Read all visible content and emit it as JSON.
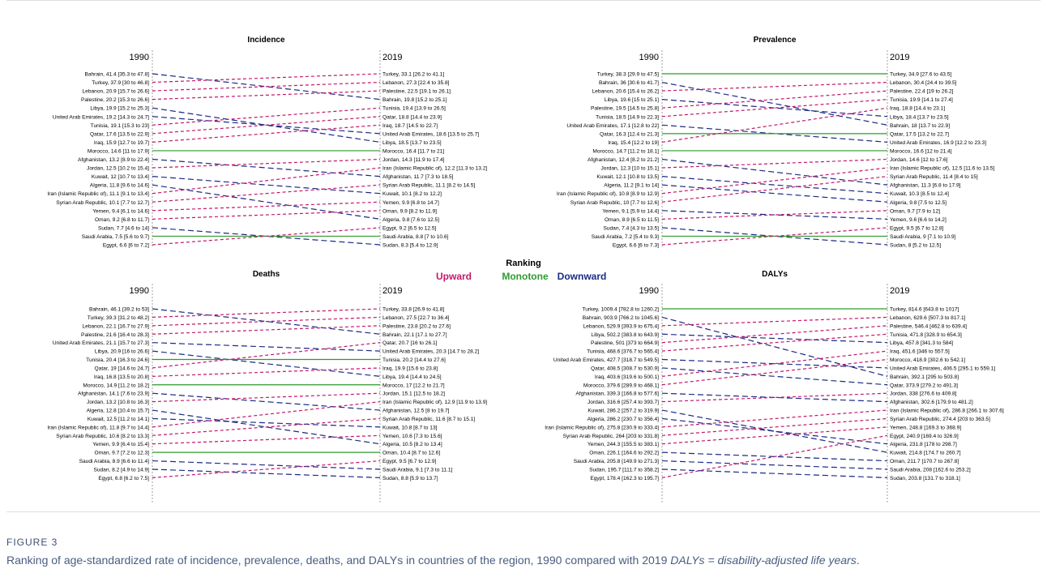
{
  "figure": {
    "label": "FIGURE 3",
    "caption_main": "Ranking of age-standardized rate of incidence, prevalence, deaths, and DALYs in countries of the region, 1990 compared with 2019",
    "caption_abbrev": "DALYs = disability-adjusted life years",
    "caption_end": "."
  },
  "legend": {
    "title": "Ranking",
    "items": [
      {
        "label": "Upward",
        "color": "#c2186b"
      },
      {
        "label": "Monotone",
        "color": "#2e9a2e"
      },
      {
        "label": "Downward",
        "color": "#1c2a85"
      }
    ]
  },
  "colors": {
    "up": "#c2186b",
    "same": "#2e9a2e",
    "down": "#1c2a85",
    "axis": "#888888"
  },
  "chart_data": [
    {
      "type": "slope",
      "title": "Incidence",
      "left_year": "1990",
      "right_year": "2019",
      "left": [
        {
          "country": "Bahrain",
          "label": "Bahrain, 41.4 [35.3 to 47.8]"
        },
        {
          "country": "Turkey",
          "label": "Turkey, 37.9 [30 to 46.8]"
        },
        {
          "country": "Lebanon",
          "label": "Lebanon, 20.9 [15.7 to 26.6]"
        },
        {
          "country": "Palestine",
          "label": "Palestine, 20.2 [15.3 to 26.6]"
        },
        {
          "country": "Libya",
          "label": "Libya, 19.9 [15.2 to 25.3]"
        },
        {
          "country": "United Arab Emirates",
          "label": "United Arab Emirates, 19.2 [14.3 to 24.7]"
        },
        {
          "country": "Tunisia",
          "label": "Tunisia, 19.1 [15.3 to 23]"
        },
        {
          "country": "Qatar",
          "label": "Qatar, 17.6 [13.5 to 22.9]"
        },
        {
          "country": "Iraq",
          "label": "Iraq, 15.9 [12.7 to 19.7]"
        },
        {
          "country": "Morocco",
          "label": "Morocco, 14.6 [11 to 17.9]"
        },
        {
          "country": "Afghanistan",
          "label": "Afghanistan, 13.2 [8.9 to 22.4]"
        },
        {
          "country": "Jordan",
          "label": "Jordan, 12.5 [10.2 to 15.4]"
        },
        {
          "country": "Kuwait",
          "label": "Kuwait, 12 [10.7 to 13.4]"
        },
        {
          "country": "Algeria",
          "label": "Algeria, 11.8 [9.6 to 14.6]"
        },
        {
          "country": "Iran (Islamic Republic of)",
          "label": "Iran (Islamic Republic of), 11.1 [9.1 to 13.4]"
        },
        {
          "country": "Syrian Arab Republic",
          "label": "Syrian Arab Republic, 10.1 [7.7 to 12.7]"
        },
        {
          "country": "Yemen",
          "label": "Yemen, 9.4 [6.1 to 14.6]"
        },
        {
          "country": "Oman",
          "label": "Oman, 9.2 [6.8 to 11.7]"
        },
        {
          "country": "Sudan",
          "label": "Sudan, 7.7 [4.6 to 14]"
        },
        {
          "country": "Saudi Arabia",
          "label": "Saudi Arabia, 7.5 [5.6 to 9.7]"
        },
        {
          "country": "Egypt",
          "label": "Egypt, 6.6 [6 to 7.2]"
        }
      ],
      "right": [
        {
          "country": "Turkey",
          "label": "Turkey, 33.1 [26.2 to 41.1]"
        },
        {
          "country": "Lebanon",
          "label": "Lebanon, 27.3 [22.4 to 35.8]"
        },
        {
          "country": "Palestine",
          "label": "Palestine, 22.5 [19.1 to 26.1]"
        },
        {
          "country": "Bahrain",
          "label": "Bahrain, 19.8 [15.2 to 25.1]"
        },
        {
          "country": "Tunisia",
          "label": "Tunisia, 19.4 [13.9 to 26.5]"
        },
        {
          "country": "Qatar",
          "label": "Qatar, 18.8 [14.4 to 23.9]"
        },
        {
          "country": "Iraq",
          "label": "Iraq, 18.7 [14.5 to 22.7]"
        },
        {
          "country": "United Arab Emirates",
          "label": "United Arab Emirates, 18.6 [13.5 to 25.7]"
        },
        {
          "country": "Libya",
          "label": "Libya, 18.5 [13.7 to 23.5]"
        },
        {
          "country": "Morocco",
          "label": "Morocco, 16.4 [11.7 to 21]"
        },
        {
          "country": "Jordan",
          "label": "Jordan, 14.3 [11.9 to 17.4]"
        },
        {
          "country": "Iran (Islamic Republic of)",
          "label": "Iran (Islamic Republic of), 12.2 [11.3 to 13.2]"
        },
        {
          "country": "Afghanistan",
          "label": "Afghanistan, 11.7 [7.3 to 18.5]"
        },
        {
          "country": "Syrian Arab Republic",
          "label": "Syrian Arab Republic, 11.1 [8.2 to 14.5]"
        },
        {
          "country": "Kuwait",
          "label": "Kuwait, 10.1 [8.2 to 12.2]"
        },
        {
          "country": "Yemen",
          "label": "Yemen, 9.9 [6.8 to 14.7]"
        },
        {
          "country": "Oman",
          "label": "Oman, 9.9 [8.2 to 11.9]"
        },
        {
          "country": "Algeria",
          "label": "Algeria, 9.8 [7.6 to 12.5]"
        },
        {
          "country": "Egypt",
          "label": "Egypt, 9.2 [6.5 to 12.5]"
        },
        {
          "country": "Saudi Arabia",
          "label": "Saudi Arabia, 8.8 [7 to 10.6]"
        },
        {
          "country": "Sudan",
          "label": "Sudan, 8.3 [5.4 to 12.9]"
        }
      ]
    },
    {
      "type": "slope",
      "title": "Prevalence",
      "left_year": "1990",
      "right_year": "2019",
      "left": [
        {
          "country": "Turkey",
          "label": "Turkey, 38.3 [29.9 to 47.5]"
        },
        {
          "country": "Bahrain",
          "label": "Bahrain, 36 [30.6 to 41.7]"
        },
        {
          "country": "Lebanon",
          "label": "Lebanon, 20.6 [15.4 to 26.2]"
        },
        {
          "country": "Libya",
          "label": "Libya, 19.6 [15 to 25.1]"
        },
        {
          "country": "Palestine",
          "label": "Palestine, 19.5 [14.5 to 25.8]"
        },
        {
          "country": "Tunisia",
          "label": "Tunisia, 18.5 [14.9 to 22.3]"
        },
        {
          "country": "United Arab Emirates",
          "label": "United Arab Emirates, 17.1 [12.8 to 22]"
        },
        {
          "country": "Qatar",
          "label": "Qatar, 16.3 [12.4 to 21.3]"
        },
        {
          "country": "Iraq",
          "label": "Iraq, 15.4 [12.2 to 19]"
        },
        {
          "country": "Morocco",
          "label": "Morocco, 14.7 [11.2 to 18.1]"
        },
        {
          "country": "Afghanistan",
          "label": "Afghanistan, 12.4 [8.2 to 21.2]"
        },
        {
          "country": "Jordan",
          "label": "Jordan, 12.3 [10 to 15.1]"
        },
        {
          "country": "Kuwait",
          "label": "Kuwait, 12.1 [10.8 to 13.5]"
        },
        {
          "country": "Algeria",
          "label": "Algeria, 11.2 [9.1 to 14]"
        },
        {
          "country": "Iran (Islamic Republic of)",
          "label": "Iran (Islamic Republic of), 10.8 [8.9 to 12.9]"
        },
        {
          "country": "Syrian Arab Republic",
          "label": "Syrian Arab Republic, 10 [7.7 to 12.6]"
        },
        {
          "country": "Yemen",
          "label": "Yemen, 9.1 [5.9 to 14.4]"
        },
        {
          "country": "Oman",
          "label": "Oman, 8.9 [6.5 to 11.5]"
        },
        {
          "country": "Sudan",
          "label": "Sudan, 7.4 [4.3 to 13.5]"
        },
        {
          "country": "Saudi Arabia",
          "label": "Saudi Arabia, 7.2 [5.4 to 9.3]"
        },
        {
          "country": "Egypt",
          "label": "Egypt, 6.6 [6 to 7.3]"
        }
      ],
      "right": [
        {
          "country": "Turkey",
          "label": "Turkey, 34.9 [27.6 to 43.5]"
        },
        {
          "country": "Lebanon",
          "label": "Lebanon, 30.4 [24.4 to 39.5]"
        },
        {
          "country": "Palestine",
          "label": "Palestine, 22.4 [19 to 26.2]"
        },
        {
          "country": "Tunisia",
          "label": "Tunisia, 19.9 [14.1 to 27.4]"
        },
        {
          "country": "Iraq",
          "label": "Iraq, 18.8 [14.4 to 23.1]"
        },
        {
          "country": "Libya",
          "label": "Libya, 18.4 [13.7 to 23.5]"
        },
        {
          "country": "Bahrain",
          "label": "Bahrain, 18 [13.7 to 22.9]"
        },
        {
          "country": "Qatar",
          "label": "Qatar, 17.5 [13.2 to 22.7]"
        },
        {
          "country": "United Arab Emirates",
          "label": "United Arab Emirates, 16.9 [12.2 to 23.3]"
        },
        {
          "country": "Morocco",
          "label": "Morocco, 16.6 [12 to 21.4]"
        },
        {
          "country": "Jordan",
          "label": "Jordan, 14.6 [12 to 17.6]"
        },
        {
          "country": "Iran (Islamic Republic of)",
          "label": "Iran (Islamic Republic of), 12.5 [11.6 to 13.5]"
        },
        {
          "country": "Syrian Arab Republic",
          "label": "Syrian Arab Republic, 11.4 [8.4 to 15]"
        },
        {
          "country": "Afghanistan",
          "label": "Afghanistan, 11.3 [6.8 to 17.9]"
        },
        {
          "country": "Kuwait",
          "label": "Kuwait, 10.3 [8.5 to 12.4]"
        },
        {
          "country": "Algeria",
          "label": "Algeria, 9.8 [7.5 to 12.5]"
        },
        {
          "country": "Oman",
          "label": "Oman, 9.7 [7.9 to 12]"
        },
        {
          "country": "Yemen",
          "label": "Yemen, 9.6 [6.6 to 14.2]"
        },
        {
          "country": "Egypt",
          "label": "Egypt, 9.5 [6.7 to 12.8]"
        },
        {
          "country": "Saudi Arabia",
          "label": "Saudi Arabia, 9 [7.1 to 10.9]"
        },
        {
          "country": "Sudan",
          "label": "Sudan, 8 [5.2 to 12.5]"
        }
      ]
    },
    {
      "type": "slope",
      "title": "Deaths",
      "left_year": "1990",
      "right_year": "2019",
      "left": [
        {
          "country": "Bahrain",
          "label": "Bahrain, 46.1 [39.2 to 53]"
        },
        {
          "country": "Turkey",
          "label": "Turkey, 39.3 [31.2 to 48.2]"
        },
        {
          "country": "Lebanon",
          "label": "Lebanon, 22.1 [16.7 to 27.9]"
        },
        {
          "country": "Palestine",
          "label": "Palestine, 21.6 [16.4 to 28.3]"
        },
        {
          "country": "United Arab Emirates",
          "label": "United Arab Emirates, 21.1 [15.7 to 27.3]"
        },
        {
          "country": "Libya",
          "label": "Libya, 20.9 [16 to 26.6]"
        },
        {
          "country": "Tunisia",
          "label": "Tunisia, 20.4 [16.3 to 24.6]"
        },
        {
          "country": "Qatar",
          "label": "Qatar, 19 [14.6 to 24.7]"
        },
        {
          "country": "Iraq",
          "label": "Iraq, 16.8 [13.5 to 20.8]"
        },
        {
          "country": "Morocco",
          "label": "Morocco, 14.9 [11.2 to 18.2]"
        },
        {
          "country": "Afghanistan",
          "label": "Afghanistan, 14.1 [7.6 to 23.9]"
        },
        {
          "country": "Jordan",
          "label": "Jordan, 13.2 [10.8 to 16.3]"
        },
        {
          "country": "Algeria",
          "label": "Algeria, 12.8 [10.4 to 15.7]"
        },
        {
          "country": "Kuwait",
          "label": "Kuwait, 12.5 [11.2 to 14.1]"
        },
        {
          "country": "Iran (Islamic Republic of)",
          "label": "Iran (Islamic Republic of), 11.8 [9.7 to 14.4]"
        },
        {
          "country": "Syrian Arab Republic",
          "label": "Syrian Arab Republic, 10.6 [8.2 to 13.3]"
        },
        {
          "country": "Yemen",
          "label": "Yemen, 9.9 [6.4 to 15.4]"
        },
        {
          "country": "Oman",
          "label": "Oman, 9.7 [7.2 to 12.3]"
        },
        {
          "country": "Saudi Arabia",
          "label": "Saudi Arabia, 8.9 [6.6 to 11.4]"
        },
        {
          "country": "Sudan",
          "label": "Sudan, 8.2 [4.9 to 14.9]"
        },
        {
          "country": "Egypt",
          "label": "Egypt, 6.8 [6.2 to 7.5]"
        }
      ],
      "right": [
        {
          "country": "Turkey",
          "label": "Turkey, 33.8 [26.9 to 41.8]"
        },
        {
          "country": "Lebanon",
          "label": "Lebanon, 27.5 [22.7 to 36.4]"
        },
        {
          "country": "Palestine",
          "label": "Palestine, 23.8 [20.2 to 27.6]"
        },
        {
          "country": "Bahrain",
          "label": "Bahrain, 22.1 [17.1 to 27.7]"
        },
        {
          "country": "Qatar",
          "label": "Qatar, 20.7 [16 to 26.1]"
        },
        {
          "country": "United Arab Emirates",
          "label": "United Arab Emirates, 20.3 [14.7 to 28.2]"
        },
        {
          "country": "Tunisia",
          "label": "Tunisia, 20.2 [14.4 to 27.6]"
        },
        {
          "country": "Iraq",
          "label": "Iraq, 19.9 [15.6 to 23.8]"
        },
        {
          "country": "Libya",
          "label": "Libya, 19.4 [14.4 to 24.5]"
        },
        {
          "country": "Morocco",
          "label": "Morocco, 17 [12.2 to 21.7]"
        },
        {
          "country": "Jordan",
          "label": "Jordan, 15.1 [12.5 to 18.2]"
        },
        {
          "country": "Iran (Islamic Republic of)",
          "label": "Iran (Islamic Republic of), 12.9 [11.9 to 13.9]"
        },
        {
          "country": "Afghanistan",
          "label": "Afghanistan, 12.5 [8 to 19.7]"
        },
        {
          "country": "Syrian Arab Republic",
          "label": "Syrian Arab Republic, 11.6 [8.7 to 15.1]"
        },
        {
          "country": "Kuwait",
          "label": "Kuwait, 10.8 [8.7 to 13]"
        },
        {
          "country": "Yemen",
          "label": "Yemen, 10.6 [7.3 to 15.6]"
        },
        {
          "country": "Algeria",
          "label": "Algeria, 10.5 [8.2 to 13.4]"
        },
        {
          "country": "Oman",
          "label": "Oman, 10.4 [8.7 to 12.6]"
        },
        {
          "country": "Egypt",
          "label": "Egypt, 9.5 [6.7 to 12.9]"
        },
        {
          "country": "Saudi Arabia",
          "label": "Saudi Arabia, 9.1 [7.3 to 11.1]"
        },
        {
          "country": "Sudan",
          "label": "Sudan, 8.8 [5.9 to 13.7]"
        }
      ]
    },
    {
      "type": "slope",
      "title": "DALYs",
      "left_year": "1990",
      "right_year": "2019",
      "left": [
        {
          "country": "Turkey",
          "label": "Turkey, 1009.4 [782.8 to 1260.2]"
        },
        {
          "country": "Bahrain",
          "label": "Bahrain, 903.9 [766.2 to 1045.6]"
        },
        {
          "country": "Lebanon",
          "label": "Lebanon, 529.9 [393.9 to 675.4]"
        },
        {
          "country": "Libya",
          "label": "Libya, 502.2 [383.8 to 643.9]"
        },
        {
          "country": "Palestine",
          "label": "Palestine, 501 [373 to 664.9]"
        },
        {
          "country": "Tunisia",
          "label": "Tunisia, 468.6 [376.7 to 565.4]"
        },
        {
          "country": "United Arab Emirates",
          "label": "United Arab Emirates, 427.7 [318.7 to 549.5]"
        },
        {
          "country": "Qatar",
          "label": "Qatar, 408.5 [308.7 to 530.9]"
        },
        {
          "country": "Iraq",
          "label": "Iraq, 403.6 [319.6 to 500.1]"
        },
        {
          "country": "Morocco",
          "label": "Morocco, 379.6 [289.9 to 468.1]"
        },
        {
          "country": "Afghanistan",
          "label": "Afghanistan, 339.3 [166.8 to 577.6]"
        },
        {
          "country": "Jordan",
          "label": "Jordan, 316.6 [257.4 to 393.7]"
        },
        {
          "country": "Kuwait",
          "label": "Kuwait, 286.2 [257.2 to 319.9]"
        },
        {
          "country": "Algeria",
          "label": "Algeria, 286.2 [230.7 to 356.4]"
        },
        {
          "country": "Iran (Islamic Republic of)",
          "label": "Iran (Islamic Republic of), 275.8 [230.9 to 333.4]"
        },
        {
          "country": "Syrian Arab Republic",
          "label": "Syrian Arab Republic, 264 [203 to 331.8]"
        },
        {
          "country": "Yemen",
          "label": "Yemen, 244.3 [155.5 to 383.1]"
        },
        {
          "country": "Oman",
          "label": "Oman, 226.1 [164.6 to 292.2]"
        },
        {
          "country": "Saudi Arabia",
          "label": "Saudi Arabia, 205.8 [149.9 to 271.3]"
        },
        {
          "country": "Sudan",
          "label": "Sudan, 195.7 [111.7 to 358.2]"
        },
        {
          "country": "Egypt",
          "label": "Egypt, 178.4 [162.3 to 195.7]"
        }
      ],
      "right": [
        {
          "country": "Turkey",
          "label": "Turkey, 814.6 [643.8 to 1017]"
        },
        {
          "country": "Lebanon",
          "label": "Lebanon, 629.6 [507.3 to 817.1]"
        },
        {
          "country": "Palestine",
          "label": "Palestine, 546.4 [462.8 to 639.4]"
        },
        {
          "country": "Tunisia",
          "label": "Tunisia, 471.8 [328.9 to 654.3]"
        },
        {
          "country": "Libya",
          "label": "Libya, 457.8 [341.3 to 584]"
        },
        {
          "country": "Iraq",
          "label": "Iraq, 451.6 [346 to 557.5]"
        },
        {
          "country": "Morocco",
          "label": "Morocco, 418.9 [302.6 to 542.1]"
        },
        {
          "country": "United Arab Emirates",
          "label": "United Arab Emirates, 406.5 [295.1 to 559.1]"
        },
        {
          "country": "Bahrain",
          "label": "Bahrain, 392.1 [295 to 503.8]"
        },
        {
          "country": "Qatar",
          "label": "Qatar, 373.9 [279.2 to 491.3]"
        },
        {
          "country": "Jordan",
          "label": "Jordan, 338 [276.6 to 409.8]"
        },
        {
          "country": "Afghanistan",
          "label": "Afghanistan, 302.6 [179.9 to 481.2]"
        },
        {
          "country": "Iran (Islamic Republic of)",
          "label": "Iran (Islamic Republic of), 286.8 [266.1 to 307.6]"
        },
        {
          "country": "Syrian Arab Republic",
          "label": "Syrian Arab Republic, 274.4 [203 to 363.5]"
        },
        {
          "country": "Yemen",
          "label": "Yemen, 248.8 [169.3 to 368.9]"
        },
        {
          "country": "Egypt",
          "label": "Egypt, 240.9 [169.4 to 326.9]"
        },
        {
          "country": "Algeria",
          "label": "Algeria, 231.8 [178 to 298.7]"
        },
        {
          "country": "Kuwait",
          "label": "Kuwait, 214.8 [174.7 to 260.7]"
        },
        {
          "country": "Oman",
          "label": "Oman, 211.7 [170.7 to 267.8]"
        },
        {
          "country": "Saudi Arabia",
          "label": "Saudi Arabia, 208 [162.6 to 253.2]"
        },
        {
          "country": "Sudan",
          "label": "Sudan, 203.8 [131.7 to 318.1]"
        }
      ]
    }
  ]
}
